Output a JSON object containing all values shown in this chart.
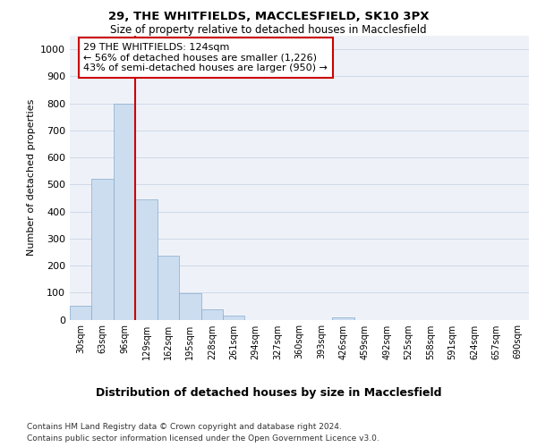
{
  "title1": "29, THE WHITFIELDS, MACCLESFIELD, SK10 3PX",
  "title2": "Size of property relative to detached houses in Macclesfield",
  "xlabel": "Distribution of detached houses by size in Macclesfield",
  "ylabel": "Number of detached properties",
  "bar_labels": [
    "30sqm",
    "63sqm",
    "96sqm",
    "129sqm",
    "162sqm",
    "195sqm",
    "228sqm",
    "261sqm",
    "294sqm",
    "327sqm",
    "360sqm",
    "393sqm",
    "426sqm",
    "459sqm",
    "492sqm",
    "525sqm",
    "558sqm",
    "591sqm",
    "624sqm",
    "657sqm",
    "690sqm"
  ],
  "bar_values": [
    50,
    520,
    800,
    445,
    238,
    97,
    38,
    15,
    0,
    0,
    0,
    0,
    8,
    0,
    0,
    0,
    0,
    0,
    0,
    0,
    0
  ],
  "bar_color": "#ccddf0",
  "bar_edge_color": "#88aacc",
  "vline_color": "#cc0000",
  "annotation_text": "29 THE WHITFIELDS: 124sqm\n← 56% of detached houses are smaller (1,226)\n43% of semi-detached houses are larger (950) →",
  "annotation_box_color": "#ffffff",
  "annotation_box_edge_color": "#cc0000",
  "ylim": [
    0,
    1050
  ],
  "yticks": [
    0,
    100,
    200,
    300,
    400,
    500,
    600,
    700,
    800,
    900,
    1000
  ],
  "grid_color": "#d0d8e8",
  "bg_color": "#eef2f8",
  "footnote1": "Contains HM Land Registry data © Crown copyright and database right 2024.",
  "footnote2": "Contains public sector information licensed under the Open Government Licence v3.0."
}
